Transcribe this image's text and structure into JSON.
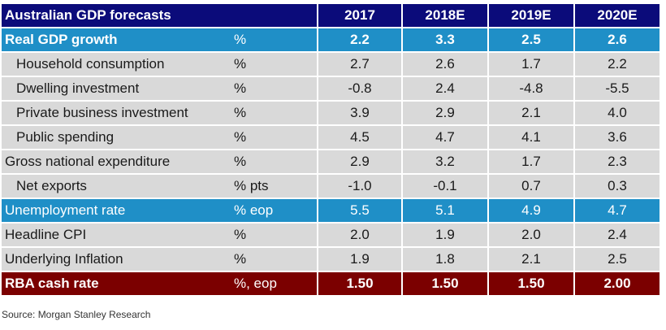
{
  "table": {
    "title": "Australian GDP forecasts",
    "years": [
      "2017",
      "2018E",
      "2019E",
      "2020E"
    ],
    "rows": [
      {
        "label": "Real GDP growth",
        "unit": "%",
        "values": [
          "2.2",
          "3.3",
          "2.5",
          "2.6"
        ]
      },
      {
        "label": "Household consumption",
        "unit": "%",
        "values": [
          "2.7",
          "2.6",
          "1.7",
          "2.2"
        ]
      },
      {
        "label": "Dwelling investment",
        "unit": "%",
        "values": [
          "-0.8",
          "2.4",
          "-4.8",
          "-5.5"
        ]
      },
      {
        "label": "Private business investment",
        "unit": "%",
        "values": [
          "3.9",
          "2.9",
          "2.1",
          "4.0"
        ]
      },
      {
        "label": "Public spending",
        "unit": "%",
        "values": [
          "4.5",
          "4.7",
          "4.1",
          "3.6"
        ]
      },
      {
        "label": "Gross national expenditure",
        "unit": "%",
        "values": [
          "2.9",
          "3.2",
          "1.7",
          "2.3"
        ]
      },
      {
        "label": "Net exports",
        "unit": "% pts",
        "values": [
          "-1.0",
          "-0.1",
          "0.7",
          "0.3"
        ]
      },
      {
        "label": "Unemployment rate",
        "unit": "% eop",
        "values": [
          "5.5",
          "5.1",
          "4.9",
          "4.7"
        ]
      },
      {
        "label": "Headline CPI",
        "unit": "%",
        "values": [
          "2.0",
          "1.9",
          "2.0",
          "2.4"
        ]
      },
      {
        "label": "Underlying Inflation",
        "unit": "%",
        "values": [
          "1.9",
          "1.8",
          "2.1",
          "2.5"
        ]
      },
      {
        "label": "RBA cash rate",
        "unit": "%, eop",
        "values": [
          "1.50",
          "1.50",
          "1.50",
          "2.00"
        ]
      }
    ]
  },
  "colors": {
    "header": "#0b0b7a",
    "highlight_blue": "#1f8fc7",
    "highlight_red": "#7b0000",
    "row_gray": "#d9d9d9"
  },
  "source": "Source: Morgan Stanley Research"
}
